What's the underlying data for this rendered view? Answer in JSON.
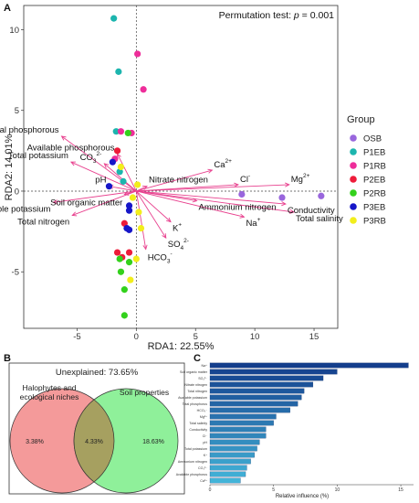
{
  "panels": {
    "a": "A",
    "b": "B",
    "c": "C"
  },
  "chart_data": [
    {
      "type": "scatter",
      "annotation": "Permutation test: p = 0.001",
      "annotation_prefix": "Permutation test: ",
      "annotation_p": "p",
      "annotation_suffix": " = 0.001",
      "xlabel": "RDA1: 22.55%",
      "ylabel": "RDA2: 14.01%",
      "xlim": [
        -9.5,
        17
      ],
      "ylim": [
        -8.5,
        11.5
      ],
      "x_ticks": [
        -5,
        0,
        5,
        10,
        15
      ],
      "y_ticks": [
        -5,
        0,
        5,
        10
      ],
      "grid": false,
      "legend_title": "Group",
      "legend_position": "right",
      "groups": [
        {
          "name": "OSB",
          "color": "#9966dd",
          "points": [
            [
              8.9,
              -0.2
            ],
            [
              12.3,
              -0.4
            ],
            [
              15.6,
              -0.3
            ]
          ]
        },
        {
          "name": "P1EB",
          "color": "#1cb5ae",
          "points": [
            [
              -1.9,
              10.7
            ],
            [
              -1.5,
              7.4
            ],
            [
              -1.7,
              3.7
            ],
            [
              -1.4,
              1.2
            ],
            [
              -1.1,
              0.6
            ]
          ]
        },
        {
          "name": "P1RB",
          "color": "#ee2d9a",
          "points": [
            [
              0.1,
              8.5
            ],
            [
              0.6,
              6.3
            ],
            [
              -1.3,
              3.7
            ],
            [
              -0.4,
              3.6
            ],
            [
              -1.8,
              2.0
            ]
          ]
        },
        {
          "name": "P2EB",
          "color": "#ee1c3a",
          "points": [
            [
              -1.6,
              2.5
            ],
            [
              -1.0,
              -2.0
            ],
            [
              -1.6,
              -3.8
            ],
            [
              -1.2,
              -4.1
            ],
            [
              -0.6,
              -3.8
            ]
          ]
        },
        {
          "name": "P2RB",
          "color": "#33d11c",
          "points": [
            [
              -0.7,
              3.6
            ],
            [
              -1.4,
              -4.2
            ],
            [
              -1.3,
              -5.0
            ],
            [
              -0.6,
              -4.4
            ],
            [
              -1.0,
              -6.1
            ],
            [
              -1.0,
              -7.7
            ]
          ]
        },
        {
          "name": "P3EB",
          "color": "#1616c8",
          "points": [
            [
              -2.3,
              0.3
            ],
            [
              -2.0,
              1.8
            ],
            [
              -0.6,
              -0.9
            ],
            [
              -0.6,
              -1.2
            ],
            [
              -0.8,
              -2.3
            ],
            [
              -0.6,
              -2.4
            ]
          ]
        },
        {
          "name": "P3RB",
          "color": "#f2ee1c",
          "points": [
            [
              -1.3,
              1.5
            ],
            [
              0.1,
              0.4
            ],
            [
              -0.3,
              -0.4
            ],
            [
              0.2,
              -1.3
            ],
            [
              0.4,
              -2.3
            ],
            [
              0.0,
              -4.2
            ],
            [
              -0.5,
              -5.5
            ]
          ]
        }
      ],
      "vectors": [
        {
          "label": "Total phosphorous",
          "x": -6.3,
          "y": 3.4
        },
        {
          "label": "Total potassium",
          "x": -5.5,
          "y": 1.8
        },
        {
          "label": "CO3",
          "sub": "3",
          "sup": "2-",
          "x": -2.7,
          "y": 1.7
        },
        {
          "label": "Available phosphorous",
          "x": -1.6,
          "y": 2.3
        },
        {
          "label": "pH",
          "x": -2.3,
          "y": 0.3
        },
        {
          "label": "Soil organic matter",
          "x": -1.0,
          "y": -0.2
        },
        {
          "label": "Nitrate nitrogen",
          "x": 0.9,
          "y": 0.3
        },
        {
          "label": "Ca",
          "sup": "2+",
          "x": 6.4,
          "y": 1.3
        },
        {
          "label": "Cl",
          "sup": "-",
          "x": 8.6,
          "y": 0.4
        },
        {
          "label": "Mg",
          "sup": "2+",
          "x": 12.9,
          "y": 0.4
        },
        {
          "label": "Ammonium nitrogen",
          "x": 5.1,
          "y": -0.6
        },
        {
          "label": "Conductivity",
          "x": 12.6,
          "y": -0.8
        },
        {
          "label": "Total salinity",
          "x": 13.3,
          "y": -1.3
        },
        {
          "label": "Na",
          "sup": "+",
          "x": 9.1,
          "y": -1.6
        },
        {
          "label": "Available potassium",
          "x": -7.0,
          "y": -0.7
        },
        {
          "label": "Total nitrogen",
          "x": -5.4,
          "y": -1.5
        },
        {
          "label": "K",
          "sup": "+",
          "x": 2.9,
          "y": -1.9
        },
        {
          "label": "SO4",
          "sub": "4",
          "sup": "2-",
          "x": 2.5,
          "y": -2.9
        },
        {
          "label": "HCO3",
          "sub": "3",
          "sup": "-",
          "x": 0.8,
          "y": -3.6
        }
      ]
    },
    {
      "type": "venn",
      "title": "Unexplained: 73.65%",
      "sets": [
        {
          "name": "Halophytes and ecological niches",
          "name_lines": [
            "Halophytes and",
            "ecological niches"
          ],
          "color": "#f49a9a",
          "only": "3.38%"
        },
        {
          "name": "Soil properties",
          "name_lines": [
            "Soil properties"
          ],
          "color": "#8ff09a",
          "only": "18.63%"
        }
      ],
      "intersection": "4.33%",
      "intersection_color": "#a6a060"
    },
    {
      "type": "bar",
      "orientation": "horizontal",
      "xlabel": "Relative influence (%)",
      "xlim": [
        0,
        16
      ],
      "x_ticks": [
        0,
        5,
        10,
        15
      ],
      "categories": [
        "Na⁺",
        "Soil organic matter",
        "SO₄²⁻",
        "Nitrate nitrogen",
        "Total nitrogen",
        "Available potassium",
        "Total phosphorus",
        "HCO₃⁻",
        "Mg²⁺",
        "Total salinity",
        "Conductivity",
        "Cl⁻",
        "pH",
        "Total potassium",
        "K⁺",
        "Ammonium nitrogen",
        "CO₃²⁻",
        "Available phosphorus",
        "Ca²⁺"
      ],
      "values": [
        15.6,
        10.0,
        8.9,
        8.1,
        7.4,
        7.2,
        6.9,
        6.3,
        5.2,
        5.0,
        4.4,
        4.4,
        3.9,
        3.7,
        3.5,
        3.2,
        2.9,
        2.8,
        2.4
      ],
      "color_dark": "#143e8c",
      "color_light": "#43b4d8"
    }
  ]
}
